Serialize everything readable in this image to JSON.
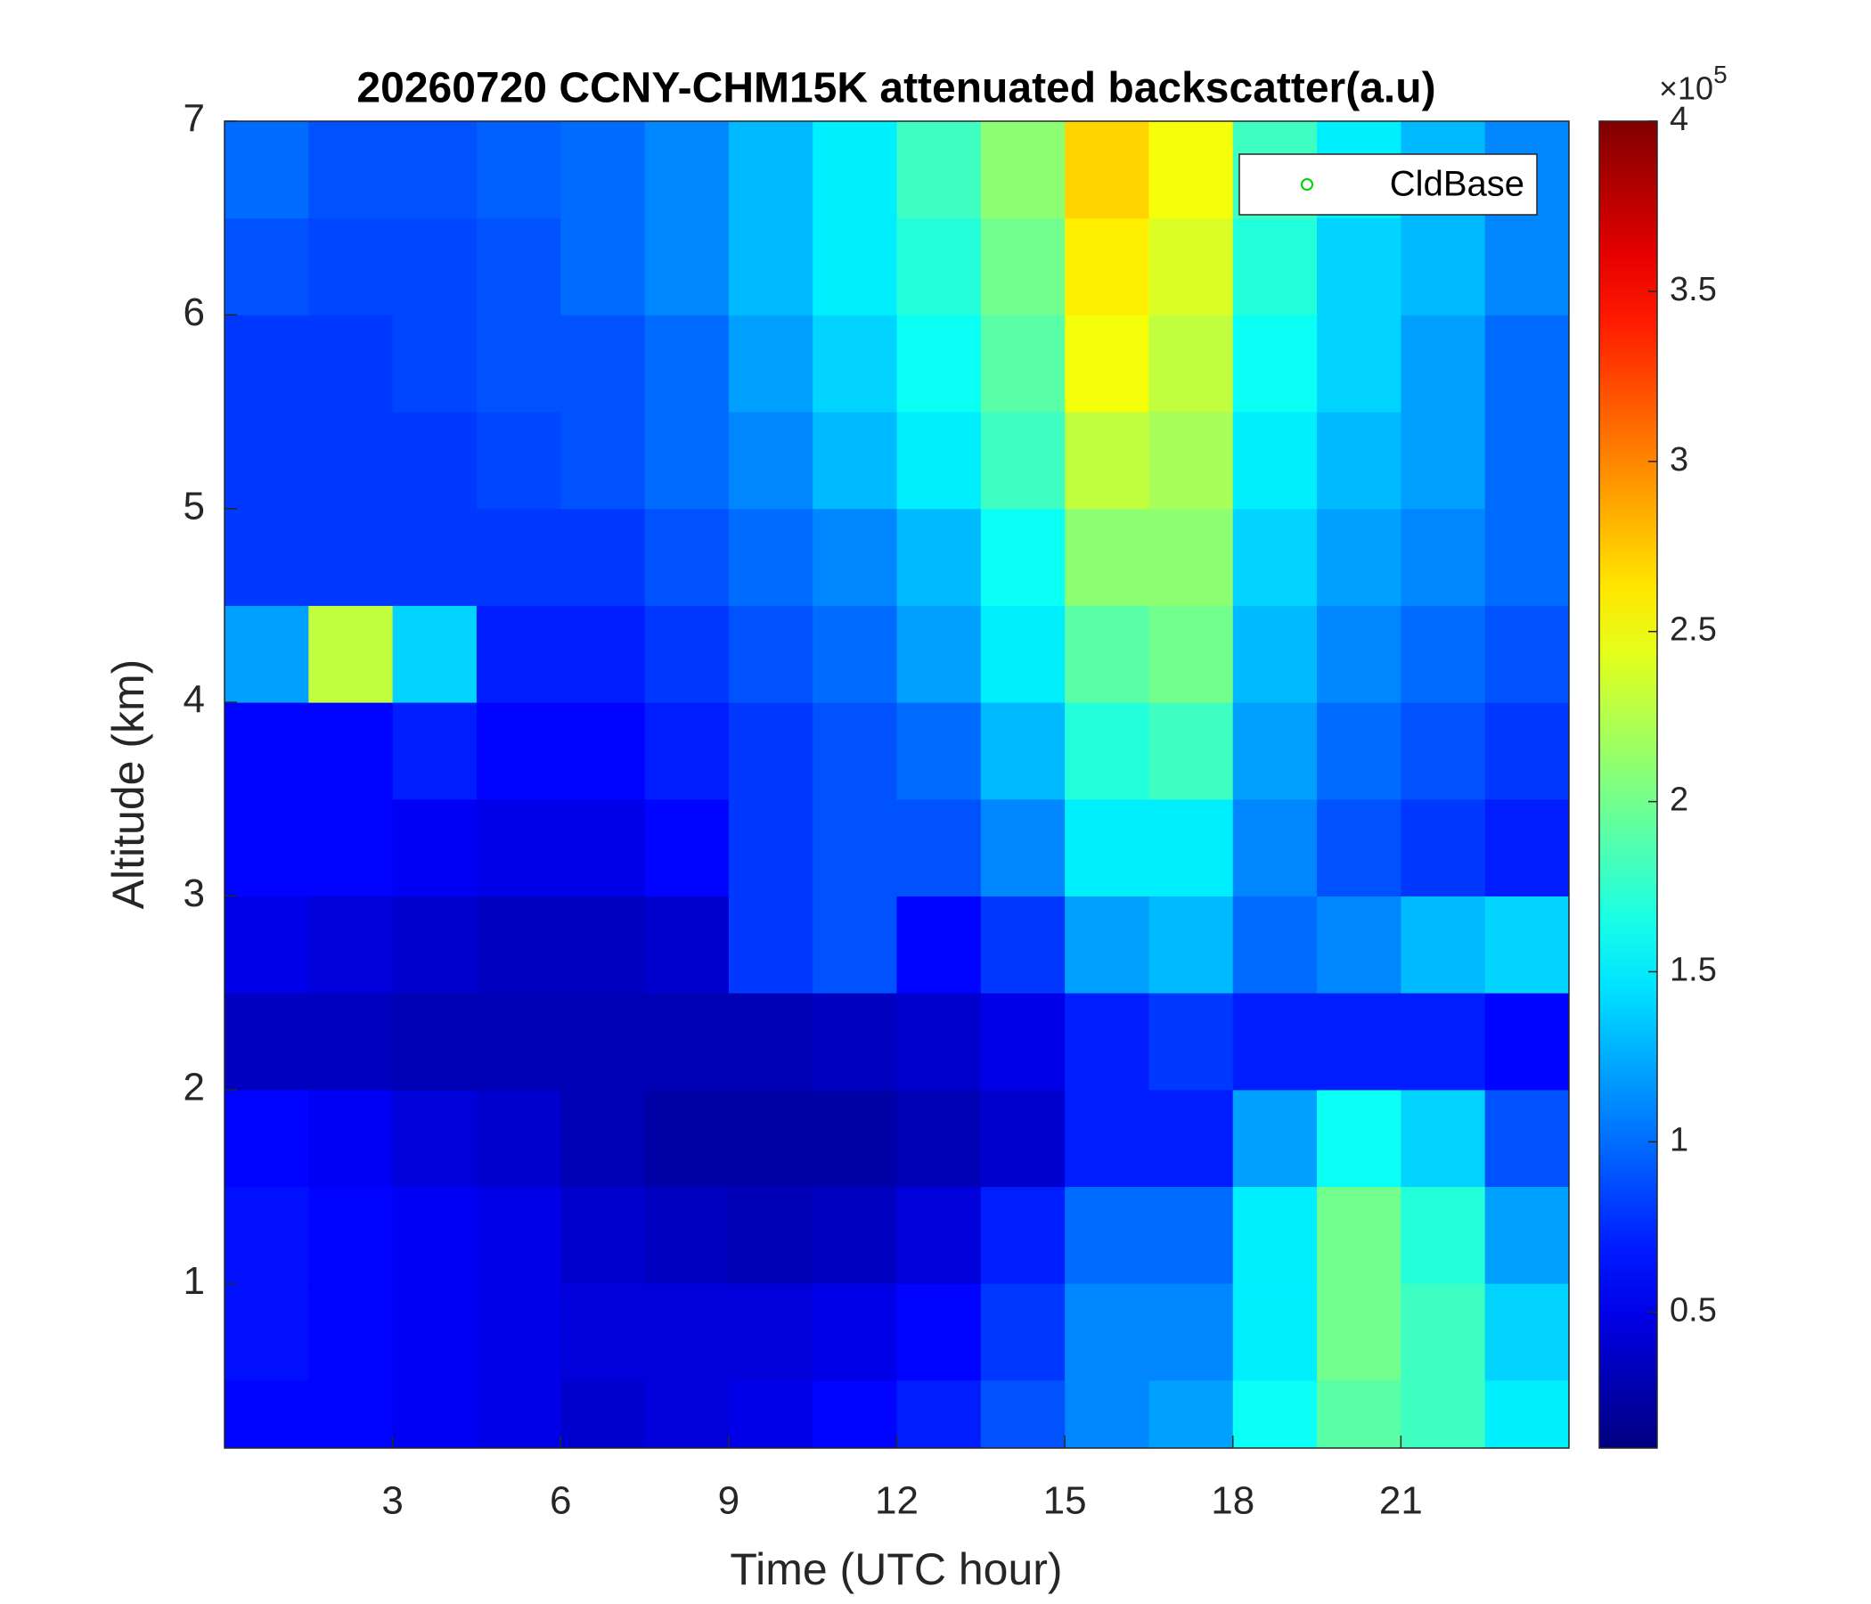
{
  "chart_data": {
    "type": "heatmap",
    "title": "20260720 CCNY-CHM15K attenuated backscatter(a.u)",
    "xlabel": "Time (UTC hour)",
    "ylabel": "Altitude (km)",
    "xlim": [
      0,
      24
    ],
    "xticks": [
      3,
      6,
      9,
      12,
      15,
      18,
      21
    ],
    "ylim": [
      0.15,
      7
    ],
    "yticks": [
      1,
      2,
      3,
      4,
      5,
      6,
      7
    ],
    "colormap": "jet",
    "clim": [
      0.1,
      4
    ],
    "cticks": [
      0.5,
      1,
      1.5,
      2,
      2.5,
      3,
      3.5,
      4
    ],
    "cbar_multiplier": "×10",
    "cbar_exponent": "5",
    "legend": {
      "name": "CldBase",
      "color": "#00d000",
      "corner": "upper right"
    },
    "x_edges": [
      0,
      1.5,
      3,
      4.5,
      6,
      7.5,
      9,
      10.5,
      12,
      13.5,
      15,
      16.5,
      18,
      19.5,
      21,
      22.5,
      24
    ],
    "y_edges": [
      0.15,
      0.5,
      1,
      1.5,
      2,
      2.5,
      3,
      3.5,
      4,
      4.5,
      5,
      5.5,
      6,
      6.5,
      7
    ],
    "z": [
      [
        0.6,
        0.6,
        0.55,
        0.5,
        0.4,
        0.45,
        0.5,
        0.6,
        0.7,
        0.9,
        1.1,
        1.2,
        1.6,
        1.9,
        1.8,
        1.5
      ],
      [
        0.65,
        0.6,
        0.55,
        0.5,
        0.45,
        0.45,
        0.45,
        0.5,
        0.6,
        0.8,
        1.1,
        1.1,
        1.5,
        2.0,
        1.8,
        1.4
      ],
      [
        0.65,
        0.6,
        0.55,
        0.5,
        0.4,
        0.35,
        0.3,
        0.35,
        0.45,
        0.7,
        1.0,
        1.0,
        1.5,
        2.0,
        1.7,
        1.2
      ],
      [
        0.6,
        0.55,
        0.45,
        0.4,
        0.3,
        0.25,
        0.25,
        0.25,
        0.3,
        0.4,
        0.7,
        0.7,
        1.2,
        1.6,
        1.4,
        0.9
      ],
      [
        0.35,
        0.35,
        0.3,
        0.3,
        0.3,
        0.3,
        0.3,
        0.35,
        0.4,
        0.5,
        0.7,
        0.8,
        0.7,
        0.7,
        0.7,
        0.6
      ],
      [
        0.5,
        0.45,
        0.4,
        0.35,
        0.35,
        0.4,
        0.8,
        0.9,
        0.6,
        0.8,
        1.2,
        1.3,
        1.0,
        1.1,
        1.3,
        1.4
      ],
      [
        0.6,
        0.6,
        0.55,
        0.5,
        0.5,
        0.6,
        0.8,
        0.9,
        0.9,
        1.1,
        1.5,
        1.5,
        1.1,
        0.9,
        0.8,
        0.7
      ],
      [
        0.6,
        0.6,
        0.7,
        0.6,
        0.6,
        0.7,
        0.8,
        0.9,
        1.0,
        1.3,
        1.7,
        1.8,
        1.2,
        1.0,
        0.9,
        0.8
      ],
      [
        1.2,
        2.3,
        1.4,
        0.7,
        0.7,
        0.8,
        0.9,
        1.0,
        1.2,
        1.5,
        1.9,
        2.0,
        1.3,
        1.1,
        1.0,
        0.9
      ],
      [
        0.8,
        0.8,
        0.8,
        0.8,
        0.8,
        0.9,
        1.0,
        1.1,
        1.3,
        1.6,
        2.1,
        2.1,
        1.4,
        1.2,
        1.1,
        1.0
      ],
      [
        0.8,
        0.8,
        0.8,
        0.85,
        0.9,
        1.0,
        1.1,
        1.3,
        1.5,
        1.8,
        2.3,
        2.2,
        1.5,
        1.3,
        1.2,
        1.0
      ],
      [
        0.8,
        0.8,
        0.85,
        0.9,
        0.9,
        1.0,
        1.2,
        1.4,
        1.6,
        1.9,
        2.5,
        2.3,
        1.6,
        1.4,
        1.2,
        1.0
      ],
      [
        0.9,
        0.85,
        0.85,
        0.9,
        1.0,
        1.1,
        1.3,
        1.5,
        1.7,
        2.0,
        2.6,
        2.4,
        1.7,
        1.4,
        1.3,
        1.1
      ],
      [
        1.0,
        0.9,
        0.9,
        0.95,
        1.0,
        1.1,
        1.3,
        1.5,
        1.8,
        2.1,
        2.7,
        2.5,
        1.8,
        1.5,
        1.3,
        1.1
      ]
    ]
  }
}
